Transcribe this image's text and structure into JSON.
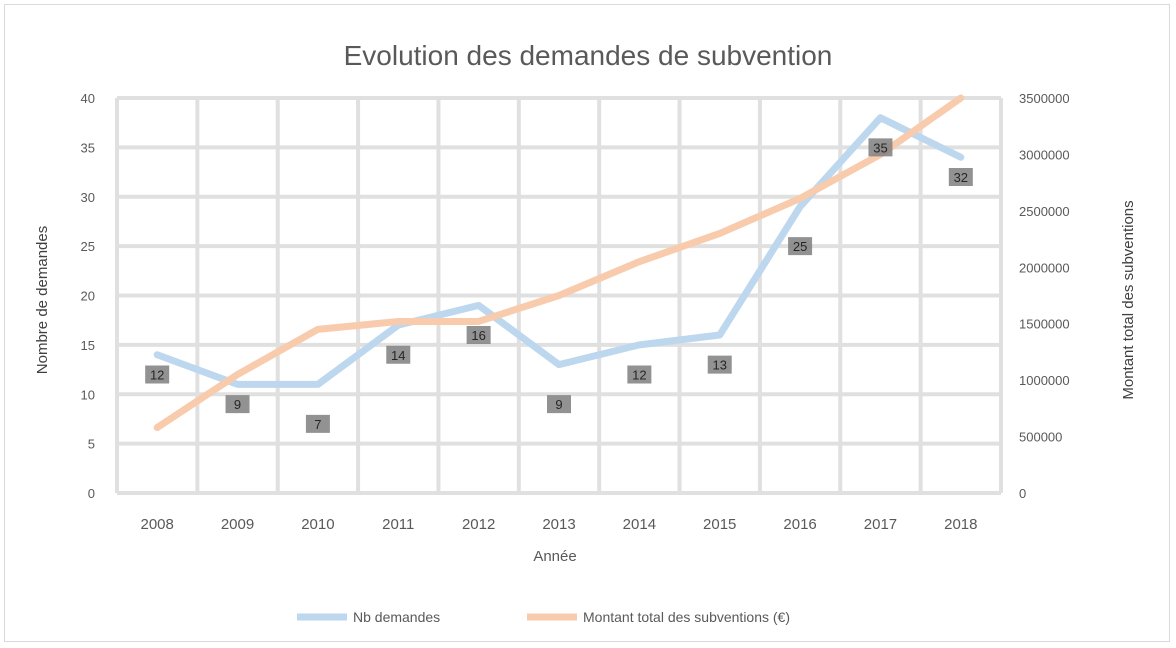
{
  "chart_data": {
    "type": "line",
    "title": "Evolution des demandes de subvention",
    "xlabel": "Année",
    "ylabel_left": "Nombre de demandes",
    "ylabel_right": "Montant total des subventions",
    "categories": [
      "2008",
      "2009",
      "2010",
      "2011",
      "2012",
      "2013",
      "2014",
      "2015",
      "2016",
      "2017",
      "2018"
    ],
    "ylim_left": [
      0,
      40
    ],
    "yticks_left": [
      "0",
      "5",
      "10",
      "15",
      "20",
      "25",
      "30",
      "35",
      "40"
    ],
    "ylim_right": [
      0,
      3500000
    ],
    "yticks_right": [
      "0",
      "500000",
      "1000000",
      "1500000",
      "2000000",
      "2500000",
      "3000000",
      "3500000"
    ],
    "grid": true,
    "legend_position": "bottom",
    "series": [
      {
        "name": "Nb demandes",
        "axis": "left",
        "color": "#bdd7ee",
        "values": [
          14,
          11,
          11,
          17,
          19,
          13,
          15,
          16,
          29,
          38,
          34
        ]
      },
      {
        "name": "Montant total des subventions (€)",
        "axis": "right",
        "color": "#f8cbad",
        "values": [
          580000,
          1050000,
          1450000,
          1520000,
          1520000,
          1750000,
          2050000,
          2300000,
          2610000,
          3000000,
          3500000
        ]
      }
    ],
    "data_labels": [
      "12",
      "9",
      "7",
      "14",
      "16",
      "9",
      "12",
      "13",
      "25",
      "35",
      "32"
    ]
  }
}
